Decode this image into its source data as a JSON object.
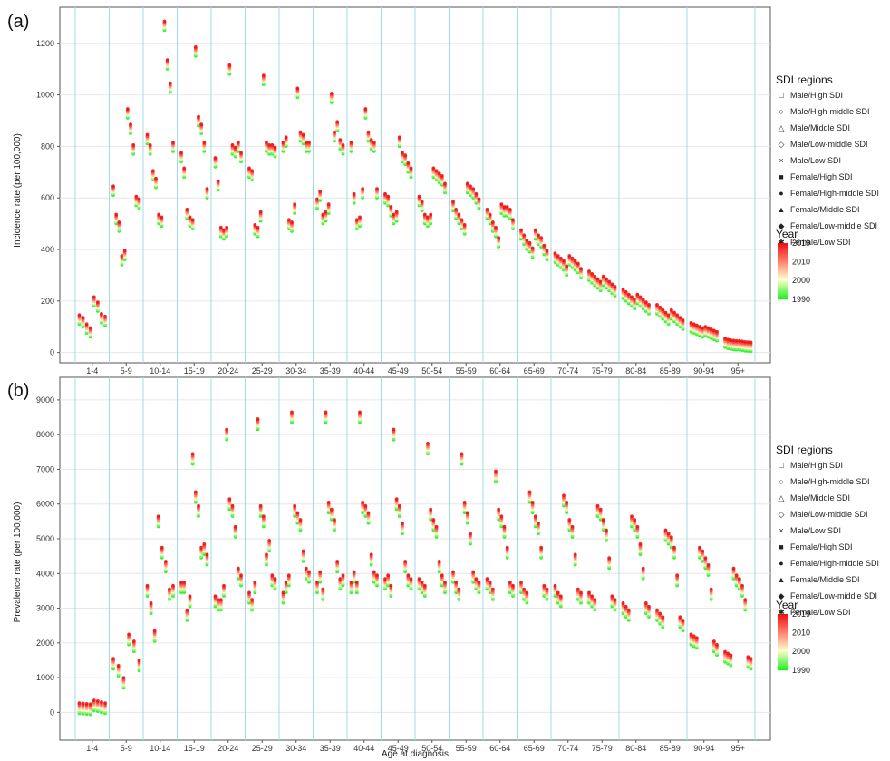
{
  "colors": {
    "year_1990": "#22ee22",
    "year_2000": "#ffffcc",
    "year_2010": "#ff7766",
    "year_2019": "#ee1111",
    "vline": "#9fdde6",
    "grid": "#e6e6e6",
    "frame": "#555555"
  },
  "chart_data": [
    {
      "panel_label": "(a)",
      "type": "scatter",
      "xlabel": "",
      "ylabel": "Incidence rate (per 100,000)",
      "ylim": [
        -40,
        1340
      ],
      "yticks": [
        0,
        200,
        400,
        600,
        800,
        1000,
        1200
      ],
      "categories": [
        "1-4",
        "5-9",
        "10-14",
        "15-19",
        "20-24",
        "25-29",
        "30-34",
        "35-39",
        "40-44",
        "45-49",
        "50-54",
        "55-59",
        "60-64",
        "65-69",
        "70-74",
        "75-79",
        "80-84",
        "85-89",
        "90-94",
        "95+"
      ],
      "grid": true,
      "legend_regions": {
        "title": "SDI regions",
        "items": [
          "Male/High SDI",
          "Male/High-middle SDI",
          "Male/Middle SDI",
          "Male/Low-middle SDI",
          "Male/Low SDI",
          "Female/High SDI",
          "Female/High-middle SDI",
          "Female/Middle SDI",
          "Female/Low-middle SDI",
          "Female/Low SDI"
        ],
        "symbols": [
          "□",
          "○",
          "△",
          "◇",
          "×",
          "■",
          "●",
          "▲",
          "◆",
          "✱"
        ]
      },
      "legend_year": {
        "title": "Year",
        "labels": [
          "2019",
          "2010",
          "2000",
          "1990"
        ]
      },
      "series_values": [
        [
          130,
          120,
          95,
          80,
          200,
          180,
          135,
          125
        ],
        [
          630,
          520,
          490,
          360,
          380,
          930,
          870,
          790,
          590,
          580
        ],
        [
          830,
          790,
          690,
          660,
          520,
          510,
          1270,
          1120,
          1030,
          800
        ],
        [
          760,
          700,
          540,
          510,
          500,
          1170,
          900,
          870,
          800,
          620
        ],
        [
          740,
          650,
          470,
          460,
          470,
          1100,
          790,
          780,
          800,
          760
        ],
        [
          700,
          690,
          480,
          470,
          530,
          1060,
          800,
          790,
          790,
          780
        ],
        [
          800,
          820,
          500,
          490,
          560,
          1010,
          840,
          830,
          800,
          800
        ],
        [
          580,
          610,
          520,
          530,
          560,
          990,
          840,
          880,
          810,
          790
        ],
        [
          800,
          600,
          500,
          510,
          620,
          930,
          840,
          810,
          800,
          620
        ],
        [
          600,
          590,
          550,
          520,
          530,
          820,
          760,
          750,
          720,
          700
        ],
        [
          590,
          570,
          520,
          510,
          520,
          700,
          690,
          680,
          670,
          640
        ],
        [
          570,
          540,
          520,
          500,
          480,
          640,
          630,
          620,
          600,
          580
        ],
        [
          540,
          520,
          490,
          470,
          430,
          560,
          550,
          550,
          540,
          500
        ],
        [
          460,
          440,
          420,
          410,
          390,
          460,
          440,
          430,
          400,
          380
        ],
        [
          370,
          360,
          350,
          340,
          320,
          360,
          350,
          340,
          330,
          310
        ],
        [
          300,
          290,
          280,
          270,
          260,
          280,
          270,
          260,
          250,
          240
        ],
        [
          230,
          220,
          210,
          200,
          190,
          210,
          200,
          190,
          180,
          170
        ],
        [
          170,
          160,
          150,
          140,
          130,
          150,
          140,
          130,
          120,
          110
        ],
        [
          100,
          95,
          90,
          85,
          80,
          85,
          80,
          75,
          70,
          65
        ],
        [
          40,
          35,
          33,
          31,
          30,
          30,
          28,
          26,
          25,
          24
        ]
      ]
    },
    {
      "panel_label": "(b)",
      "type": "scatter",
      "xlabel": "Age at diagnosis",
      "ylabel": "Prevalence rate (per 100,000)",
      "ylim": [
        -800,
        9650
      ],
      "yticks": [
        0,
        1000,
        2000,
        3000,
        4000,
        5000,
        6000,
        7000,
        8000,
        9000
      ],
      "categories": [
        "1-4",
        "5-9",
        "10-14",
        "15-19",
        "20-24",
        "25-29",
        "30-34",
        "35-39",
        "40-44",
        "45-49",
        "50-54",
        "55-59",
        "60-64",
        "65-69",
        "70-74",
        "75-79",
        "80-84",
        "85-89",
        "90-94",
        "95+"
      ],
      "grid": true,
      "legend_regions": {
        "title": "SDI regions",
        "items": [
          "Male/High SDI",
          "Male/High-middle SDI",
          "Male/Middle SDI",
          "Male/Low-middle SDI",
          "Male/Low SDI",
          "Female/High SDI",
          "Female/High-middle SDI",
          "Female/Middle SDI",
          "Female/Low-middle SDI",
          "Female/Low SDI"
        ],
        "symbols": [
          "□",
          "○",
          "△",
          "◇",
          "×",
          "■",
          "●",
          "▲",
          "◆",
          "✱"
        ]
      },
      "legend_year": {
        "title": "Year",
        "labels": [
          "2019",
          "2010",
          "2000",
          "1990"
        ]
      },
      "series_values": [
        [
          120,
          110,
          100,
          90,
          200,
          180,
          150,
          120
        ],
        [
          1400,
          1200,
          850,
          2100,
          1900,
          1350
        ],
        [
          3500,
          3000,
          2200,
          5500,
          4600,
          4200,
          3400,
          3500
        ],
        [
          3600,
          3600,
          2800,
          3200,
          7300,
          6200,
          5800,
          4600,
          4700,
          4400
        ],
        [
          3200,
          3100,
          3100,
          3500,
          8000,
          6000,
          5800,
          5200,
          4000,
          3800
        ],
        [
          3300,
          3100,
          3600,
          8300,
          5800,
          5500,
          4400,
          4800,
          3800,
          3700
        ],
        [
          3300,
          3600,
          3800,
          8500,
          5800,
          5600,
          5400,
          4500,
          4000,
          3900
        ],
        [
          3600,
          3900,
          3400,
          8500,
          5900,
          5700,
          5400,
          4200,
          3700,
          3800
        ],
        [
          3600,
          3900,
          3600,
          8500,
          5900,
          5800,
          5600,
          4400,
          3900,
          3800
        ],
        [
          3700,
          3800,
          3500,
          8000,
          6000,
          5800,
          5300,
          4200,
          3800,
          3700
        ],
        [
          3700,
          3600,
          3500,
          7600,
          5700,
          5400,
          5200,
          4200,
          3800,
          3600
        ],
        [
          3900,
          3600,
          3400,
          7300,
          5900,
          5600,
          5000,
          3900,
          3700,
          3600
        ],
        [
          3700,
          3600,
          3400,
          6800,
          5700,
          5500,
          5200,
          4600,
          3600,
          3500
        ],
        [
          3600,
          3400,
          3300,
          6200,
          5900,
          5500,
          5300,
          4600,
          3500,
          3400
        ],
        [
          3500,
          3300,
          3200,
          6100,
          5900,
          5400,
          5200,
          4400,
          3400,
          3300
        ],
        [
          3300,
          3200,
          3100,
          5800,
          5700,
          5400,
          5100,
          4300,
          3200,
          3100
        ],
        [
          3000,
          2900,
          2800,
          5500,
          5400,
          5200,
          4700,
          4000,
          3000,
          2900
        ],
        [
          2800,
          2700,
          2600,
          5100,
          5000,
          4900,
          4600,
          3800,
          2600,
          2500
        ],
        [
          2100,
          2050,
          2000,
          4600,
          4500,
          4300,
          4100,
          3400,
          1900,
          1800
        ],
        [
          1600,
          1550,
          1500,
          4000,
          3800,
          3700,
          3500,
          3100,
          1450,
          1400
        ]
      ]
    }
  ]
}
